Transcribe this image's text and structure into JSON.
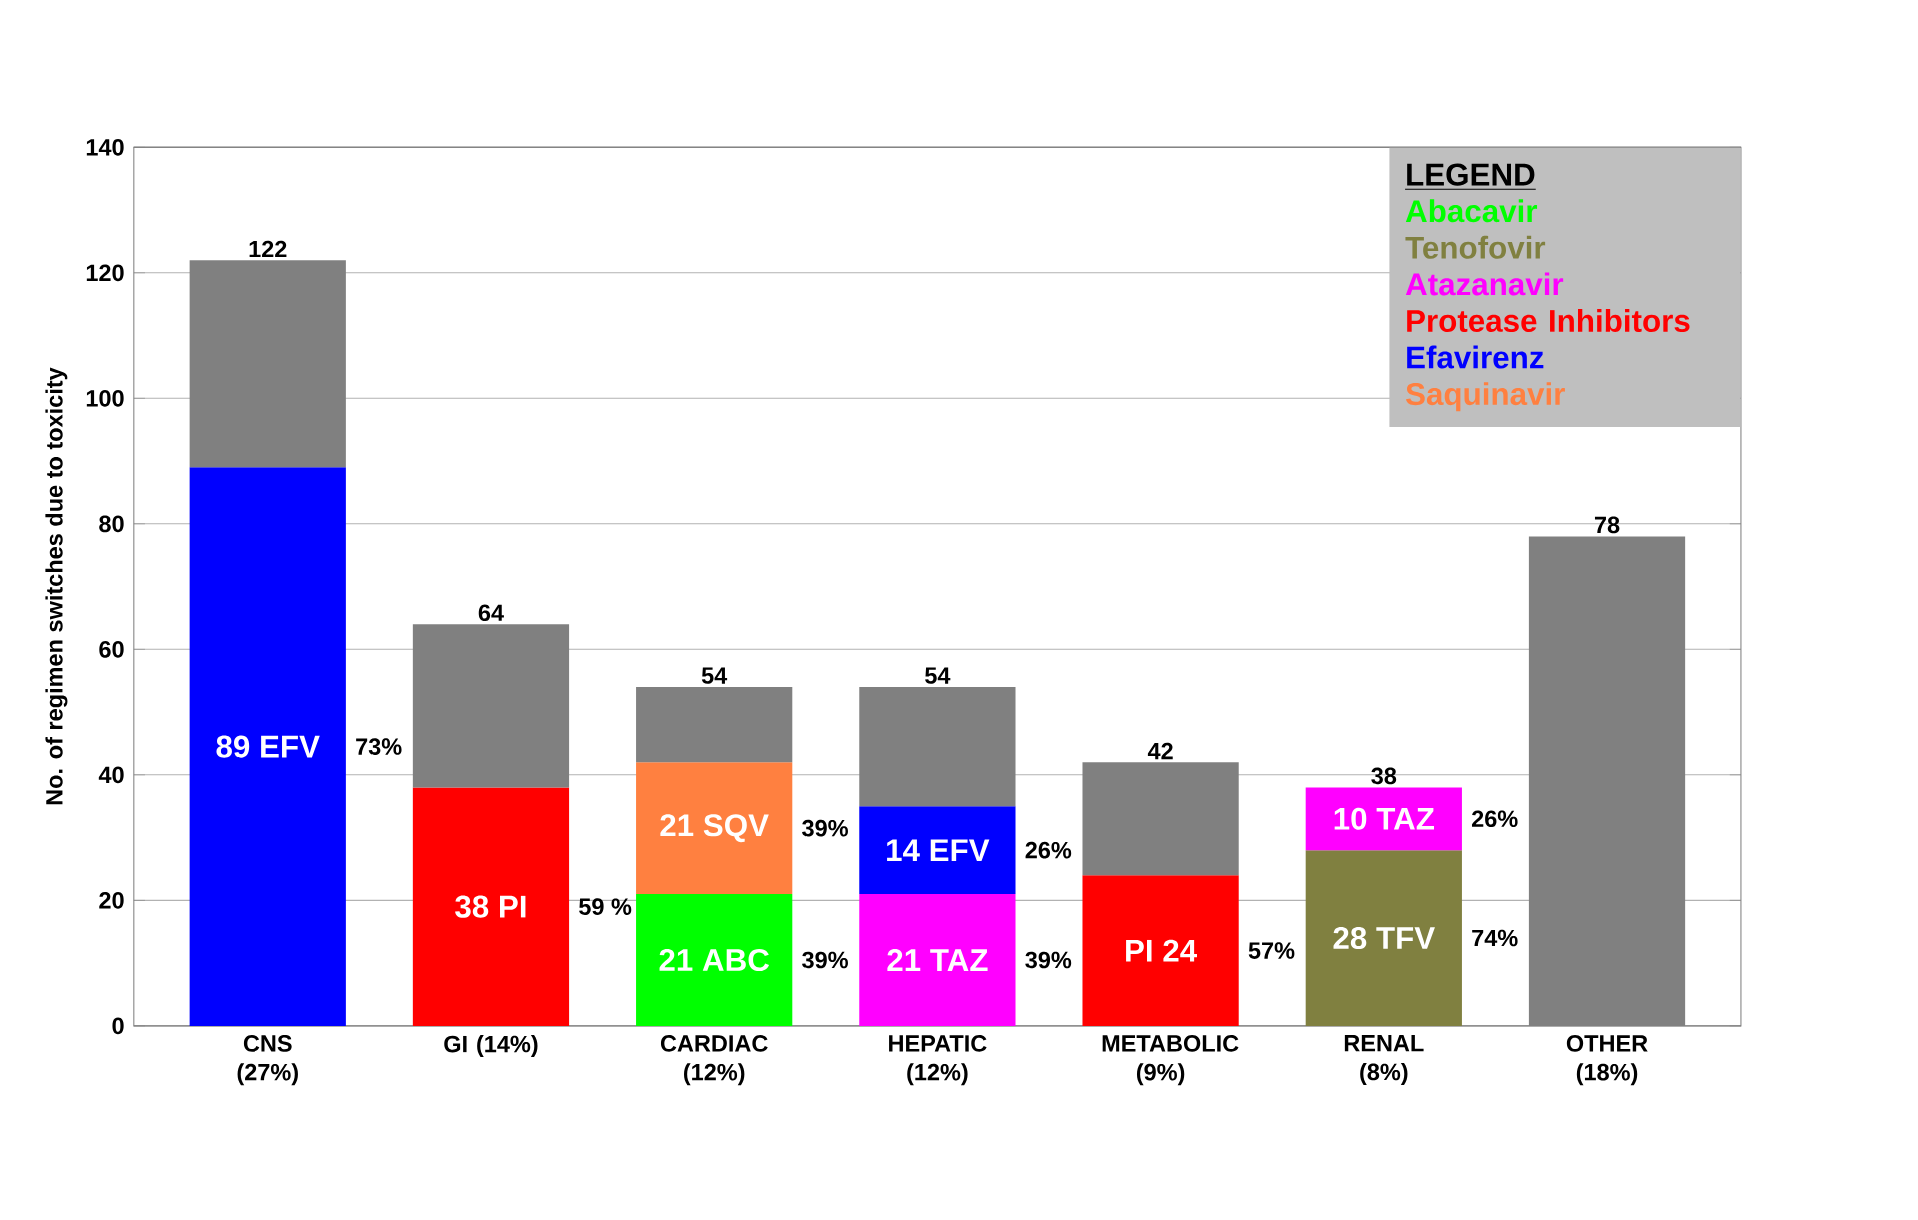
{
  "chart_data": {
    "type": "bar",
    "stacked": true,
    "ylabel": "No. of regimen switches due to toxicity",
    "legend_title": "LEGEND",
    "categories": [
      "CNS (27%)",
      "GI (14%)",
      "CARDIAC (12%)",
      "HEPATIC (12%)",
      "METABOLIC (9%)",
      "RENAL (8%)",
      "OTHER (18%)"
    ],
    "series": [
      {
        "name": "Abacavir",
        "color": "#00ff00",
        "values": [
          null,
          null,
          21,
          null,
          null,
          null,
          null
        ],
        "value_labels": [
          null,
          null,
          "21 ABC",
          null,
          null,
          null,
          null
        ]
      },
      {
        "name": "Tenofovir",
        "color": "#808040",
        "values": [
          null,
          null,
          null,
          null,
          null,
          28,
          null
        ],
        "value_labels": [
          null,
          null,
          null,
          null,
          null,
          "28 TFV",
          null
        ]
      },
      {
        "name": "Atazanavir",
        "color": "#ff00ff",
        "values": [
          null,
          null,
          null,
          21,
          null,
          10,
          null
        ],
        "value_labels": [
          null,
          null,
          null,
          "21 TAZ",
          null,
          "10 TAZ",
          null
        ]
      },
      {
        "name": "Protease Inhibitors",
        "color": "#ff0000",
        "values": [
          null,
          38,
          null,
          null,
          24,
          null,
          null
        ],
        "value_labels": [
          null,
          "38 PI",
          null,
          null,
          "PI 24",
          null,
          null
        ]
      },
      {
        "name": "Efavirenz",
        "color": "#0000ff",
        "values": [
          89,
          null,
          null,
          14,
          null,
          null,
          null
        ],
        "value_labels": [
          "89 EFV",
          null,
          null,
          "14 EFV",
          null,
          null,
          null
        ]
      },
      {
        "name": "Saquinavir",
        "color": "#ff8040",
        "values": [
          null,
          null,
          21,
          null,
          null,
          null,
          null
        ],
        "value_labels": [
          null,
          null,
          "21 SQV",
          null,
          null,
          null,
          null
        ]
      },
      {
        "color": "#808080",
        "values": [
          33,
          26,
          12,
          19,
          18,
          null,
          78
        ]
      }
    ],
    "totals": [
      "122",
      "64",
      "54",
      "54",
      "42",
      "38",
      "78"
    ],
    "annotations": [
      "73%",
      "59 %",
      "39%",
      "39%",
      "39%",
      "26%",
      "57%",
      "74%",
      "26%"
    ],
    "ylim": [
      0,
      140
    ],
    "yticks": [
      0,
      20,
      40,
      60,
      80,
      100,
      120,
      140
    ],
    "grid": "y",
    "legend": "top right"
  }
}
